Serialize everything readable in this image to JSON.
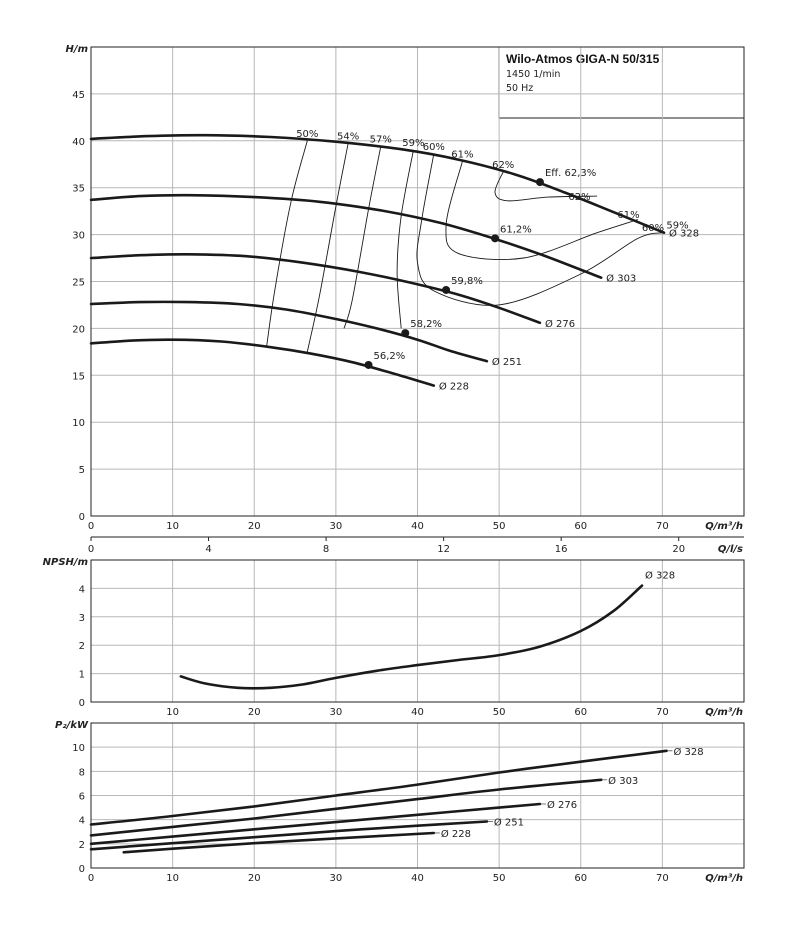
{
  "header": {
    "title": "Wilo-Atmos GIGA-N 50/315",
    "speed": "1450 1/min",
    "frequency": "50 Hz"
  },
  "chart_data": [
    {
      "id": "head",
      "type": "line",
      "xlabel": "Q/m³/h",
      "ylabel": "H/m",
      "xlim": [
        0,
        80
      ],
      "ylim": [
        0,
        50
      ],
      "x_ticks": [
        0,
        10,
        20,
        30,
        40,
        50,
        60,
        70
      ],
      "y_ticks": [
        0,
        5,
        10,
        15,
        20,
        25,
        30,
        35,
        40,
        45
      ],
      "grid": true,
      "series": [
        {
          "name": "Ø 328",
          "points": [
            [
              0,
              40.2
            ],
            [
              7,
              40.5
            ],
            [
              14,
              40.6
            ],
            [
              22,
              40.4
            ],
            [
              30,
              39.9
            ],
            [
              38,
              39.1
            ],
            [
              45,
              38.0
            ],
            [
              52,
              36.4
            ],
            [
              58,
              34.5
            ],
            [
              64,
              32.4
            ],
            [
              70.2,
              30.2
            ]
          ],
          "bep": {
            "x": 55,
            "y": 35.6,
            "label": "Eff. 62,3%"
          }
        },
        {
          "name": "Ø 303",
          "points": [
            [
              0,
              33.7
            ],
            [
              6,
              34.1
            ],
            [
              12,
              34.2
            ],
            [
              20,
              34.0
            ],
            [
              28,
              33.5
            ],
            [
              36,
              32.5
            ],
            [
              43,
              31.2
            ],
            [
              50,
              29.4
            ],
            [
              56,
              27.6
            ],
            [
              62.5,
              25.4
            ]
          ],
          "bep": {
            "x": 49.5,
            "y": 29.6,
            "label": "61,2%"
          }
        },
        {
          "name": "Ø 276",
          "points": [
            [
              0,
              27.5
            ],
            [
              6,
              27.8
            ],
            [
              12,
              27.9
            ],
            [
              19,
              27.7
            ],
            [
              26,
              27.0
            ],
            [
              33,
              26.0
            ],
            [
              39,
              24.9
            ],
            [
              45,
              23.6
            ],
            [
              50,
              22.2
            ],
            [
              55,
              20.6
            ]
          ],
          "bep": {
            "x": 43.5,
            "y": 24.1,
            "label": "59,8%"
          }
        },
        {
          "name": "Ø 251",
          "points": [
            [
              0,
              22.6
            ],
            [
              6,
              22.8
            ],
            [
              12,
              22.8
            ],
            [
              18,
              22.6
            ],
            [
              24,
              22.0
            ],
            [
              30,
              21.0
            ],
            [
              35,
              20.0
            ],
            [
              40,
              18.8
            ],
            [
              44,
              17.6
            ],
            [
              48.5,
              16.5
            ]
          ],
          "bep": {
            "x": 38.5,
            "y": 19.5,
            "label": "58,2%"
          }
        },
        {
          "name": "Ø 228",
          "points": [
            [
              0,
              18.4
            ],
            [
              5,
              18.7
            ],
            [
              10,
              18.8
            ],
            [
              16,
              18.6
            ],
            [
              22,
              18.0
            ],
            [
              27,
              17.3
            ],
            [
              32,
              16.4
            ],
            [
              37,
              15.2
            ],
            [
              42,
              13.9
            ]
          ],
          "bep": {
            "x": 34,
            "y": 16.1,
            "label": "56,2%"
          }
        }
      ],
      "efficiency_lines": [
        {
          "label": "50%",
          "points": [
            [
              26.5,
              40.0
            ],
            [
              24.5,
              33.5
            ],
            [
              22.5,
              24.0
            ],
            [
              21.5,
              18.0
            ]
          ]
        },
        {
          "label": "54%",
          "points": [
            [
              31.5,
              39.7
            ],
            [
              30,
              33.0
            ],
            [
              28,
              23.5
            ],
            [
              26.5,
              17.5
            ]
          ]
        },
        {
          "label": "57%",
          "points": [
            [
              35.5,
              39.4
            ],
            [
              34,
              32.7
            ],
            [
              32,
              23.0
            ],
            [
              31,
              20.0
            ]
          ]
        },
        {
          "label": "59%",
          "points": [
            [
              39.5,
              39.0
            ],
            [
              38,
              32.0
            ],
            [
              37.5,
              26.0
            ],
            [
              38,
              20.0
            ]
          ]
        },
        {
          "label": "60%",
          "points": [
            [
              42,
              38.6
            ],
            [
              40.5,
              31.5
            ],
            [
              40,
              27.0
            ],
            [
              42,
              24.0
            ],
            [
              50,
              22.5
            ],
            [
              60,
              25.8
            ],
            [
              67,
              29.6
            ],
            [
              70,
              30.2
            ]
          ]
        },
        {
          "label": "61%",
          "points": [
            [
              45.5,
              37.8
            ],
            [
              43.5,
              31.0
            ],
            [
              45,
              28.0
            ],
            [
              53,
              27.5
            ],
            [
              62,
              30.2
            ],
            [
              67,
              31.6
            ]
          ]
        },
        {
          "label": "62%",
          "points": [
            [
              50.5,
              36.7
            ],
            [
              49.5,
              34.5
            ],
            [
              51,
              33.6
            ],
            [
              56,
              34.0
            ],
            [
              62,
              34.1
            ]
          ]
        }
      ],
      "efficiency_label_extra": [
        "62%",
        "61%",
        "60%",
        "59%"
      ]
    },
    {
      "id": "qls_axis",
      "xlabel": "Q/l/s",
      "x_ticks": [
        0,
        4,
        8,
        12,
        16,
        20
      ]
    },
    {
      "id": "npsh",
      "type": "line",
      "xlabel": "Q/m³/h",
      "ylabel": "NPSH/m",
      "xlim": [
        0,
        80
      ],
      "ylim": [
        0,
        5
      ],
      "x_ticks": [
        10,
        20,
        30,
        40,
        50,
        60,
        70
      ],
      "y_ticks": [
        0,
        1,
        2,
        3,
        4
      ],
      "grid": true,
      "series": [
        {
          "name": "Ø 328",
          "points": [
            [
              11,
              0.9
            ],
            [
              14,
              0.65
            ],
            [
              18,
              0.5
            ],
            [
              22,
              0.5
            ],
            [
              26,
              0.62
            ],
            [
              30,
              0.85
            ],
            [
              35,
              1.1
            ],
            [
              40,
              1.3
            ],
            [
              45,
              1.48
            ],
            [
              50,
              1.65
            ],
            [
              55,
              1.95
            ],
            [
              60,
              2.5
            ],
            [
              64,
              3.2
            ],
            [
              67.5,
              4.1
            ]
          ]
        }
      ]
    },
    {
      "id": "power",
      "type": "line",
      "xlabel": "Q/m³/h",
      "ylabel": "P₂/kW",
      "xlim": [
        0,
        80
      ],
      "ylim": [
        0,
        12
      ],
      "x_ticks": [
        0,
        10,
        20,
        30,
        40,
        50,
        60,
        70
      ],
      "y_ticks": [
        0,
        2,
        4,
        6,
        8,
        10
      ],
      "grid": true,
      "series": [
        {
          "name": "Ø 328",
          "points": [
            [
              0,
              3.6
            ],
            [
              10,
              4.3
            ],
            [
              20,
              5.1
            ],
            [
              30,
              6.0
            ],
            [
              40,
              6.9
            ],
            [
              50,
              7.9
            ],
            [
              60,
              8.8
            ],
            [
              70.5,
              9.7
            ]
          ]
        },
        {
          "name": "Ø 303",
          "points": [
            [
              0,
              2.7
            ],
            [
              10,
              3.4
            ],
            [
              20,
              4.1
            ],
            [
              30,
              4.9
            ],
            [
              40,
              5.7
            ],
            [
              50,
              6.5
            ],
            [
              62.5,
              7.3
            ]
          ]
        },
        {
          "name": "Ø 276",
          "points": [
            [
              0,
              2.0
            ],
            [
              10,
              2.6
            ],
            [
              20,
              3.2
            ],
            [
              30,
              3.8
            ],
            [
              40,
              4.4
            ],
            [
              50,
              5.0
            ],
            [
              55,
              5.3
            ]
          ]
        },
        {
          "name": "Ø 251",
          "points": [
            [
              0,
              1.55
            ],
            [
              10,
              2.05
            ],
            [
              20,
              2.55
            ],
            [
              30,
              3.05
            ],
            [
              40,
              3.5
            ],
            [
              48.5,
              3.85
            ]
          ]
        },
        {
          "name": "Ø 228",
          "points": [
            [
              4,
              1.3
            ],
            [
              10,
              1.6
            ],
            [
              20,
              2.05
            ],
            [
              30,
              2.45
            ],
            [
              42,
              2.9
            ]
          ]
        }
      ]
    }
  ]
}
